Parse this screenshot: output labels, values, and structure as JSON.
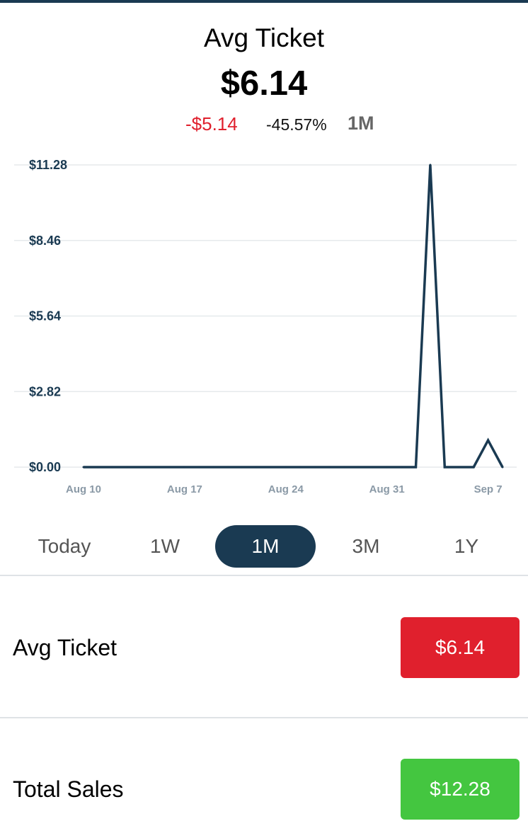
{
  "header": {
    "title": "Avg Ticket",
    "value": "$6.14",
    "change_amount": "-$5.14",
    "change_percent": "-45.57%",
    "period": "1M"
  },
  "colors": {
    "primary": "#1a3a52",
    "negative": "#e0202d",
    "positive": "#44c640",
    "gridline": "#e6e9ec"
  },
  "chart_data": {
    "type": "line",
    "x": [
      "Aug 10",
      "Aug 11",
      "Aug 12",
      "Aug 13",
      "Aug 14",
      "Aug 15",
      "Aug 16",
      "Aug 17",
      "Aug 18",
      "Aug 19",
      "Aug 20",
      "Aug 21",
      "Aug 22",
      "Aug 23",
      "Aug 24",
      "Aug 25",
      "Aug 26",
      "Aug 27",
      "Aug 28",
      "Aug 29",
      "Aug 30",
      "Aug 31",
      "Sep 1",
      "Sep 2",
      "Sep 3",
      "Sep 4",
      "Sep 5",
      "Sep 6",
      "Sep 7",
      "Sep 8"
    ],
    "series": [
      {
        "values": [
          0,
          0,
          0,
          0,
          0,
          0,
          0,
          0,
          0,
          0,
          0,
          0,
          0,
          0,
          0,
          0,
          0,
          0,
          0,
          0,
          0,
          0,
          0,
          0,
          11.28,
          0,
          0,
          0,
          1.0,
          0
        ]
      }
    ],
    "y_ticks": [
      "$11.28",
      "$8.46",
      "$5.64",
      "$2.82",
      "$0.00"
    ],
    "x_ticks": [
      "Aug 10",
      "Aug 17",
      "Aug 24",
      "Aug 31",
      "Sep 7"
    ],
    "ylim": [
      0,
      11.28
    ],
    "grid": true,
    "title": "",
    "xlabel": "",
    "ylabel": ""
  },
  "range_tabs": [
    {
      "label": "Today",
      "active": false
    },
    {
      "label": "1W",
      "active": false
    },
    {
      "label": "1M",
      "active": true
    },
    {
      "label": "3M",
      "active": false
    },
    {
      "label": "1Y",
      "active": false
    }
  ],
  "metrics": [
    {
      "label": "Avg Ticket",
      "value": "$6.14",
      "color": "#e0202d"
    },
    {
      "label": "Total Sales",
      "value": "$12.28",
      "color": "#44c640"
    }
  ]
}
